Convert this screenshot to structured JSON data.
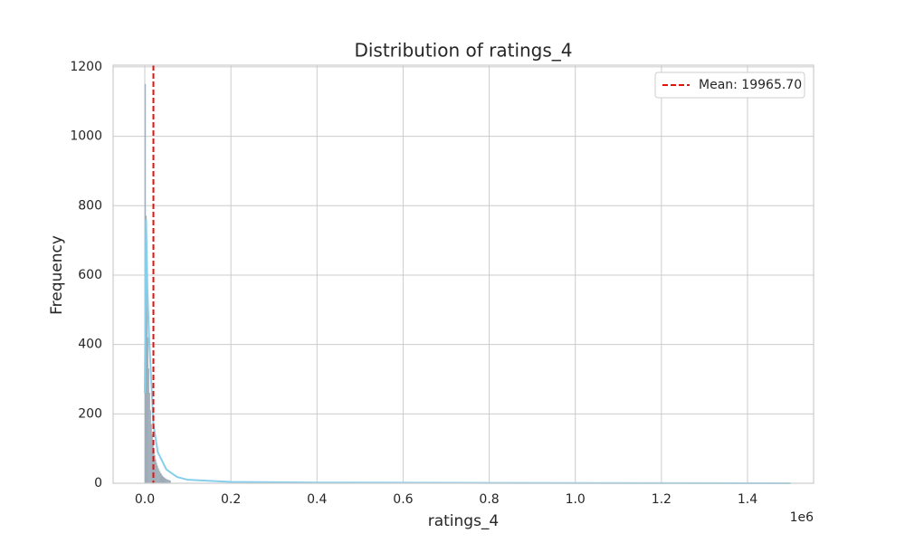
{
  "chart_data": {
    "type": "histogram",
    "title": "Distribution of ratings_4",
    "xlabel": "ratings_4",
    "ylabel": "Frequency",
    "x_offset_label": "1e6",
    "bins": [
      0,
      2000,
      4000,
      6000,
      8000,
      10000,
      12000,
      14000,
      16000,
      18000,
      20000,
      22000,
      24000,
      26000,
      28000,
      30000,
      32000,
      34000,
      36000,
      38000,
      40000,
      42000,
      44000,
      46000,
      48000,
      50000,
      52000,
      54000,
      56000,
      58000,
      60000
    ],
    "counts": [
      1150,
      770,
      560,
      420,
      330,
      260,
      210,
      170,
      140,
      115,
      95,
      80,
      68,
      58,
      50,
      43,
      37,
      32,
      28,
      24,
      21,
      18,
      16,
      14,
      12,
      11,
      10,
      9,
      8,
      7
    ],
    "color": "#a9bccb",
    "kde": {
      "color": "#87ceeb",
      "x": [
        0,
        3000,
        6000,
        10000,
        20000,
        30000,
        50000,
        75000,
        100000,
        200000,
        400000,
        800000,
        1500000
      ],
      "values": [
        260,
        760,
        560,
        420,
        170,
        90,
        40,
        18,
        10,
        4,
        2,
        1,
        0
      ]
    },
    "mean": {
      "value": 19965.7,
      "label": "Mean: 19965.70",
      "color": "#e3120b"
    },
    "legend": "upper right",
    "grid": true,
    "xlim": [
      -73600,
      1553500
    ],
    "ylim": [
      0,
      1205
    ],
    "xticks": [
      {
        "value": 0,
        "label": "0.0"
      },
      {
        "value": 200000,
        "label": "0.2"
      },
      {
        "value": 400000,
        "label": "0.4"
      },
      {
        "value": 600000,
        "label": "0.6"
      },
      {
        "value": 800000,
        "label": "0.8"
      },
      {
        "value": 1000000,
        "label": "1.0"
      },
      {
        "value": 1200000,
        "label": "1.2"
      },
      {
        "value": 1400000,
        "label": "1.4"
      }
    ],
    "yticks": [
      0,
      200,
      400,
      600,
      800,
      1000,
      1200
    ]
  }
}
